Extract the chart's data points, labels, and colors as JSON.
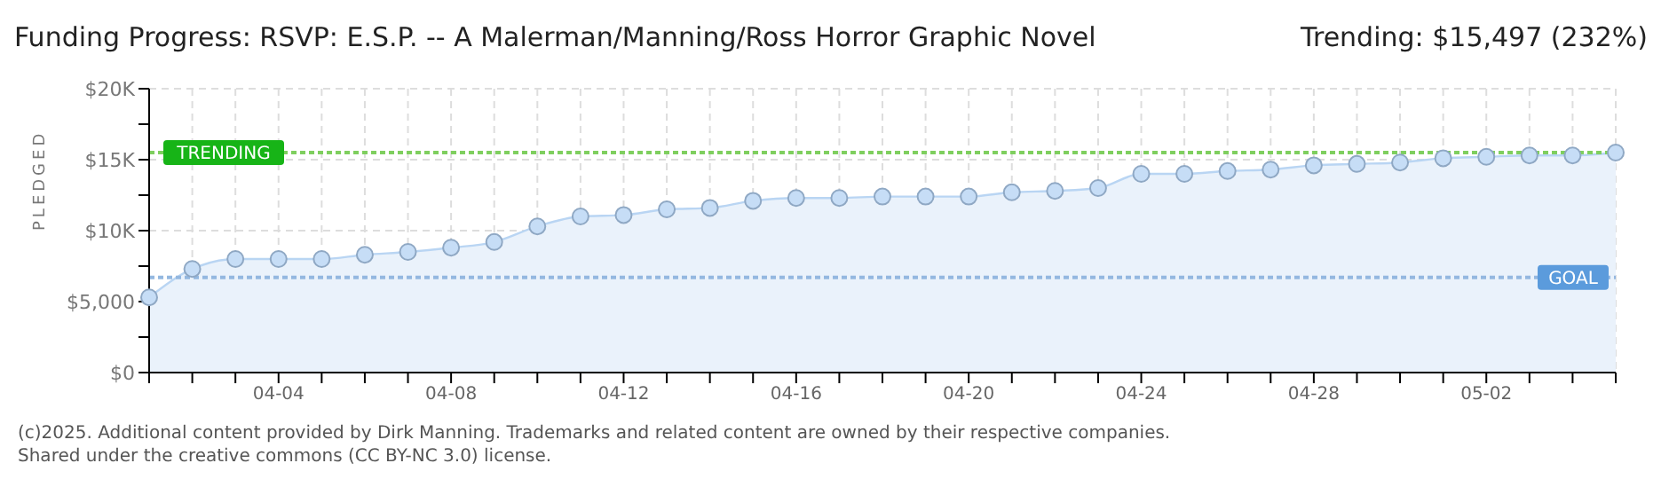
{
  "chart_data": {
    "type": "area",
    "title": "Funding Progress: RSVP: E.S.P. -- A Malerman/Manning/Ross Horror Graphic Novel",
    "ylabel": "PLEDGED",
    "annotations": [
      "Trending: $15,497 (232%)",
      "(c)2025. Additional content provided by Dirk Manning. Trademarks and related content are owned by their respective companies.",
      "Shared under the creative commons (CC BY-NC 3.0) license."
    ],
    "categories": [
      null,
      null,
      null,
      "04-04",
      null,
      null,
      null,
      "04-08",
      null,
      null,
      null,
      "04-12",
      null,
      null,
      null,
      "04-16",
      null,
      null,
      null,
      "04-20",
      null,
      null,
      null,
      "04-24",
      null,
      null,
      null,
      "04-28",
      null,
      null,
      null,
      "05-02",
      null,
      null,
      null
    ],
    "series": [
      {
        "color": "#b9d5f3",
        "values": [
          5300,
          7300,
          8000,
          8000,
          8000,
          8300,
          8500,
          8800,
          9200,
          10300,
          11000,
          11100,
          11500,
          11600,
          12100,
          12300,
          12300,
          12400,
          12400,
          12400,
          12700,
          12800,
          13000,
          14000,
          14000,
          14200,
          14300,
          14600,
          14700,
          14800,
          15100,
          15200,
          15300,
          15300,
          15500
        ]
      }
    ],
    "ylim": [
      0,
      20000
    ],
    "yticks": [
      {
        "value": 0,
        "label": "$0"
      },
      {
        "value": 2500,
        "label": null
      },
      {
        "value": 5000,
        "label": "$5,000"
      },
      {
        "value": 7500,
        "label": null
      },
      {
        "value": 10000,
        "label": "$10K"
      },
      {
        "value": 12500,
        "label": null
      },
      {
        "value": 15000,
        "label": "$15K"
      },
      {
        "value": 17500,
        "label": null
      },
      {
        "value": 20000,
        "label": "$20K"
      }
    ],
    "ref_lines": [
      {
        "axis": "y",
        "value": 15497,
        "label": "TRENDING",
        "color": "#7fcf5f",
        "line_style": "dotted"
      },
      {
        "axis": "y",
        "value": 6700,
        "label": "GOAL",
        "color": "#94b8e0",
        "line_style": "dotted"
      }
    ],
    "grid": true,
    "marker": "circle"
  }
}
